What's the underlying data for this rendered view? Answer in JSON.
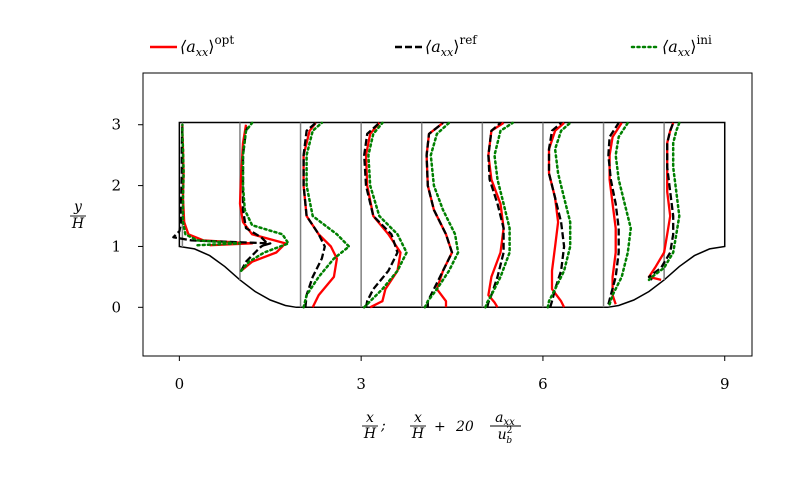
{
  "chart_data": {
    "type": "line",
    "title": "",
    "xlabel": {
      "x_over_H": [
        "x",
        "H"
      ],
      "separator": ";",
      "plus": "+",
      "coef": "20",
      "aux": "a",
      "aux_sub": "xx",
      "ub": "u",
      "ub_sub": "b",
      "ub_sup": "2"
    },
    "ylabel": [
      "y",
      "H"
    ],
    "xlim": [
      -0.6,
      9.45
    ],
    "ylim": [
      -0.8,
      3.85
    ],
    "xticks": [
      0,
      3,
      6,
      9
    ],
    "xtick_labels": [
      "0",
      "3",
      "6",
      "9"
    ],
    "yticks": [
      0,
      1,
      2,
      3
    ],
    "ytick_labels": [
      "0",
      "1",
      "2",
      "3"
    ],
    "grid": false,
    "legend_position": "top",
    "legend": [
      {
        "key": "opt",
        "base": "⟨a",
        "sub": "xx",
        "close": "⟩",
        "sup": "opt",
        "style": "solid",
        "color": "#ff0000"
      },
      {
        "key": "ref",
        "base": "⟨a",
        "sub": "xx",
        "close": "⟩",
        "sup": "ref",
        "style": "dashed",
        "color": "#000000"
      },
      {
        "key": "ini",
        "base": "⟨a",
        "sub": "xx",
        "close": "⟩",
        "sup": "ini",
        "style": "dotted",
        "color": "#008000"
      }
    ],
    "geometry_outline": {
      "hill_crest_y": 1.0,
      "channel_top_y": 3.036,
      "left_x": 0.0,
      "right_x": 9.0,
      "hill_profile_left": {
        "x": [
          0.0,
          0.25,
          0.5,
          0.75,
          1.0,
          1.25,
          1.5,
          1.75,
          1.93
        ],
        "y": [
          1.0,
          0.96,
          0.85,
          0.67,
          0.45,
          0.26,
          0.12,
          0.03,
          0.0
        ]
      },
      "hill_profile_right": {
        "x": [
          7.07,
          7.25,
          7.5,
          7.75,
          8.0,
          8.25,
          8.5,
          8.75,
          9.0
        ],
        "y": [
          0.0,
          0.03,
          0.12,
          0.26,
          0.45,
          0.67,
          0.85,
          0.96,
          1.0
        ]
      }
    },
    "stations": [
      0.05,
      1.0,
      2.0,
      3.0,
      4.0,
      5.0,
      6.0,
      7.0,
      8.0
    ],
    "series": [
      {
        "key": "opt",
        "profiles": [
          {
            "x0": 0.05,
            "y": [
              1.02,
              1.05,
              1.1,
              1.2,
              1.4,
              1.8,
              2.2,
              2.6,
              2.85,
              3.0
            ],
            "x": [
              0.5,
              1.2,
              0.4,
              0.15,
              0.08,
              0.06,
              0.07,
              0.06,
              0.05,
              0.05
            ]
          },
          {
            "x0": 1.0,
            "y": [
              0.6,
              0.75,
              0.9,
              1.05,
              1.2,
              1.4,
              1.7,
              2.2,
              2.7,
              3.0
            ],
            "x": [
              1.02,
              1.2,
              1.6,
              1.75,
              1.2,
              1.05,
              1.0,
              1.02,
              1.05,
              1.1
            ]
          },
          {
            "x0": 2.0,
            "y": [
              0.0,
              0.2,
              0.5,
              0.8,
              1.0,
              1.2,
              1.5,
              2.0,
              2.5,
              2.9,
              3.03
            ],
            "x": [
              2.2,
              2.3,
              2.55,
              2.6,
              2.5,
              2.3,
              2.1,
              2.05,
              2.05,
              2.15,
              2.25
            ]
          },
          {
            "x0": 3.0,
            "y": [
              0.0,
              0.1,
              0.3,
              0.6,
              0.9,
              1.2,
              1.5,
              2.0,
              2.5,
              2.85,
              3.03
            ],
            "x": [
              3.15,
              3.35,
              3.4,
              3.6,
              3.65,
              3.45,
              3.2,
              3.1,
              3.08,
              3.15,
              3.3
            ]
          },
          {
            "x0": 4.0,
            "y": [
              0.0,
              0.1,
              0.3,
              0.6,
              0.9,
              1.2,
              1.6,
              2.0,
              2.5,
              2.85,
              3.03
            ],
            "x": [
              4.4,
              4.4,
              4.25,
              4.35,
              4.5,
              4.4,
              4.2,
              4.1,
              4.08,
              4.12,
              4.35
            ]
          },
          {
            "x0": 5.0,
            "y": [
              0.0,
              0.08,
              0.2,
              0.5,
              0.9,
              1.3,
              1.7,
              2.1,
              2.5,
              2.9,
              3.03
            ],
            "x": [
              5.25,
              5.2,
              5.1,
              5.15,
              5.3,
              5.35,
              5.3,
              5.15,
              5.1,
              5.15,
              5.35
            ]
          },
          {
            "x0": 6.0,
            "y": [
              0.0,
              0.1,
              0.3,
              0.6,
              1.0,
              1.4,
              1.8,
              2.2,
              2.6,
              2.9,
              3.03
            ],
            "x": [
              6.35,
              6.3,
              6.15,
              6.15,
              6.2,
              6.25,
              6.2,
              6.1,
              6.1,
              6.2,
              6.35
            ]
          },
          {
            "x0": 7.0,
            "y": [
              0.05,
              0.2,
              0.5,
              0.9,
              1.3,
              1.7,
              2.1,
              2.5,
              2.8,
              3.03
            ],
            "x": [
              7.2,
              7.15,
              7.15,
              7.2,
              7.2,
              7.15,
              7.1,
              7.1,
              7.15,
              7.3
            ]
          },
          {
            "x0": 8.0,
            "y": [
              0.45,
              0.5,
              0.65,
              0.9,
              1.2,
              1.5,
              1.9,
              2.3,
              2.7,
              2.9,
              3.03
            ],
            "x": [
              7.95,
              7.75,
              7.85,
              8.0,
              8.05,
              8.1,
              8.05,
              8.05,
              8.05,
              8.1,
              8.15
            ]
          }
        ]
      },
      {
        "key": "ref",
        "profiles": [
          {
            "x0": 0.05,
            "y": [
              1.02,
              1.05,
              1.1,
              1.15,
              1.25,
              1.4,
              1.6,
              1.8,
              2.2,
              2.6,
              3.0
            ],
            "x": [
              1.4,
              1.5,
              0.2,
              -0.1,
              0.0,
              0.03,
              0.02,
              0.03,
              0.04,
              0.04,
              0.05
            ]
          },
          {
            "x0": 1.0,
            "y": [
              0.6,
              0.75,
              0.9,
              1.0,
              1.05,
              1.15,
              1.3,
              1.6,
              2.0,
              2.5,
              2.9,
              3.0
            ],
            "x": [
              1.02,
              1.1,
              1.25,
              1.35,
              1.45,
              1.35,
              1.1,
              1.05,
              1.05,
              1.05,
              1.1,
              1.15
            ]
          },
          {
            "x0": 2.0,
            "y": [
              0.0,
              0.2,
              0.5,
              0.8,
              1.0,
              1.2,
              1.5,
              2.0,
              2.5,
              2.9,
              3.03
            ],
            "x": [
              2.08,
              2.1,
              2.2,
              2.35,
              2.4,
              2.3,
              2.1,
              2.05,
              2.05,
              2.1,
              2.25
            ]
          },
          {
            "x0": 3.0,
            "y": [
              0.0,
              0.1,
              0.3,
              0.6,
              0.9,
              1.2,
              1.5,
              2.0,
              2.5,
              2.85,
              3.03
            ],
            "x": [
              3.08,
              3.1,
              3.2,
              3.45,
              3.6,
              3.5,
              3.2,
              3.08,
              3.05,
              3.1,
              3.3
            ]
          },
          {
            "x0": 4.0,
            "y": [
              0.0,
              0.1,
              0.3,
              0.6,
              0.9,
              1.2,
              1.6,
              2.0,
              2.5,
              2.85,
              3.03
            ],
            "x": [
              4.1,
              4.1,
              4.2,
              4.35,
              4.5,
              4.4,
              4.2,
              4.1,
              4.08,
              4.12,
              4.35
            ]
          },
          {
            "x0": 5.0,
            "y": [
              0.0,
              0.08,
              0.2,
              0.5,
              0.9,
              1.3,
              1.7,
              2.1,
              2.5,
              2.9,
              3.03
            ],
            "x": [
              5.08,
              5.1,
              5.15,
              5.25,
              5.35,
              5.35,
              5.25,
              5.12,
              5.1,
              5.15,
              5.3
            ]
          },
          {
            "x0": 6.0,
            "y": [
              0.0,
              0.1,
              0.3,
              0.6,
              1.0,
              1.4,
              1.8,
              2.2,
              2.6,
              2.9,
              3.03
            ],
            "x": [
              6.12,
              6.15,
              6.2,
              6.3,
              6.35,
              6.3,
              6.2,
              6.1,
              6.1,
              6.15,
              6.3
            ]
          },
          {
            "x0": 7.0,
            "y": [
              0.05,
              0.2,
              0.5,
              0.9,
              1.3,
              1.7,
              2.1,
              2.5,
              2.8,
              3.03
            ],
            "x": [
              7.08,
              7.12,
              7.2,
              7.25,
              7.25,
              7.2,
              7.12,
              7.08,
              7.1,
              7.25
            ]
          },
          {
            "x0": 8.0,
            "y": [
              0.45,
              0.5,
              0.65,
              0.9,
              1.2,
              1.5,
              1.9,
              2.3,
              2.7,
              2.9,
              3.03
            ],
            "x": [
              7.8,
              7.75,
              7.95,
              8.1,
              8.15,
              8.15,
              8.1,
              8.05,
              8.05,
              8.1,
              8.15
            ]
          }
        ]
      },
      {
        "key": "ini",
        "profiles": [
          {
            "x0": 0.05,
            "y": [
              1.02,
              1.05,
              1.1,
              1.2,
              1.4,
              1.8,
              2.2,
              2.6,
              2.85,
              3.0
            ],
            "x": [
              0.3,
              1.0,
              0.3,
              0.1,
              0.06,
              0.06,
              0.07,
              0.06,
              0.05,
              0.05
            ]
          },
          {
            "x0": 1.0,
            "y": [
              0.6,
              0.75,
              0.9,
              1.05,
              1.2,
              1.35,
              1.6,
              2.0,
              2.5,
              2.9,
              3.03
            ],
            "x": [
              1.02,
              1.15,
              1.4,
              1.8,
              1.7,
              1.2,
              1.08,
              1.05,
              1.05,
              1.1,
              1.2
            ]
          },
          {
            "x0": 2.0,
            "y": [
              0.0,
              0.2,
              0.5,
              0.8,
              1.0,
              1.2,
              1.5,
              2.0,
              2.5,
              2.9,
              3.03
            ],
            "x": [
              2.05,
              2.1,
              2.3,
              2.55,
              2.8,
              2.6,
              2.2,
              2.1,
              2.1,
              2.2,
              2.35
            ]
          },
          {
            "x0": 3.0,
            "y": [
              0.0,
              0.1,
              0.3,
              0.6,
              0.9,
              1.2,
              1.5,
              2.0,
              2.5,
              2.85,
              3.03
            ],
            "x": [
              3.05,
              3.15,
              3.35,
              3.6,
              3.75,
              3.6,
              3.3,
              3.15,
              3.12,
              3.2,
              3.35
            ]
          },
          {
            "x0": 4.0,
            "y": [
              0.0,
              0.1,
              0.3,
              0.6,
              0.9,
              1.2,
              1.6,
              2.0,
              2.5,
              2.85,
              3.03
            ],
            "x": [
              4.05,
              4.1,
              4.25,
              4.45,
              4.6,
              4.55,
              4.35,
              4.2,
              4.15,
              4.25,
              4.45
            ]
          },
          {
            "x0": 5.0,
            "y": [
              0.0,
              0.08,
              0.2,
              0.5,
              0.9,
              1.3,
              1.7,
              2.1,
              2.5,
              2.9,
              3.03
            ],
            "x": [
              5.05,
              5.08,
              5.15,
              5.3,
              5.45,
              5.45,
              5.35,
              5.25,
              5.2,
              5.3,
              5.5
            ]
          },
          {
            "x0": 6.0,
            "y": [
              0.0,
              0.1,
              0.3,
              0.6,
              1.0,
              1.4,
              1.8,
              2.2,
              2.6,
              2.9,
              3.03
            ],
            "x": [
              6.08,
              6.1,
              6.2,
              6.35,
              6.45,
              6.45,
              6.35,
              6.25,
              6.2,
              6.3,
              6.45
            ]
          },
          {
            "x0": 7.0,
            "y": [
              0.05,
              0.2,
              0.5,
              0.9,
              1.3,
              1.7,
              2.1,
              2.5,
              2.8,
              3.03
            ],
            "x": [
              7.1,
              7.15,
              7.3,
              7.4,
              7.45,
              7.35,
              7.25,
              7.2,
              7.25,
              7.4
            ]
          },
          {
            "x0": 8.0,
            "y": [
              0.45,
              0.5,
              0.65,
              0.9,
              1.2,
              1.5,
              1.9,
              2.3,
              2.7,
              2.9,
              3.03
            ],
            "x": [
              7.75,
              7.8,
              8.0,
              8.15,
              8.2,
              8.25,
              8.2,
              8.15,
              8.15,
              8.2,
              8.25
            ]
          }
        ]
      }
    ]
  }
}
